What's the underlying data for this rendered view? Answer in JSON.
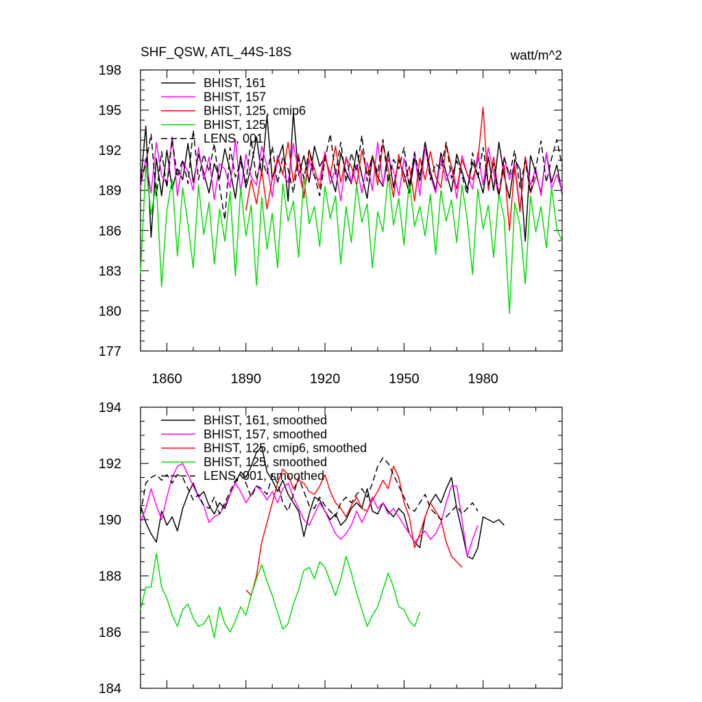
{
  "figure": {
    "title_left": "SHF_QSW, ATL_44S-18S",
    "title_right": "watt/m^2"
  },
  "chart_data": [
    {
      "type": "line",
      "panel": "top",
      "x": {
        "start": 1850,
        "end": 2010,
        "step": 2
      },
      "xlim": [
        1850,
        2010
      ],
      "xticks": [
        1860,
        1890,
        1920,
        1950,
        1980
      ],
      "xtick_labels_shown": true,
      "ylim": [
        177,
        198
      ],
      "yticks": [
        177,
        180,
        183,
        186,
        189,
        192,
        195,
        198
      ],
      "legend_position": "top-left",
      "series": [
        {
          "name": "BHIST, 161",
          "color": "#000000",
          "dash": "solid",
          "start_year": 1850,
          "values": [
            189.4,
            193.8,
            185.5,
            191.4,
            188.6,
            192.0,
            189.1,
            190.6,
            189.8,
            192.5,
            189.6,
            191.7,
            190.3,
            188.8,
            191.0,
            189.9,
            192.1,
            190.5,
            188.4,
            191.6,
            189.2,
            190.8,
            193.0,
            190.1,
            194.6,
            189.8,
            191.2,
            192.4,
            188.2,
            194.8,
            190.1,
            191.6,
            189.6,
            192.3,
            190.8,
            191.5,
            190.2,
            188.9,
            191.8,
            190.4,
            189.5,
            192.0,
            190.1,
            188.4,
            191.6,
            190.0,
            189.3,
            191.9,
            189.2,
            191.3,
            190.2,
            188.8,
            191.4,
            189.7,
            192.6,
            190.4,
            189.0,
            191.8,
            190.3,
            188.9,
            191.7,
            190.4,
            189.1,
            191.1,
            190.2,
            188.8,
            191.5,
            189.0,
            192.6,
            190.1,
            188.4,
            191.3,
            190.6,
            185.2,
            191.6,
            190.3,
            188.8,
            191.8,
            189.6,
            190.9,
            188.7
          ]
        },
        {
          "name": "BHIST, 157",
          "color": "#ff00ff",
          "dash": "solid",
          "start_year": 1850,
          "values": [
            189.2,
            191.4,
            188.8,
            192.6,
            190.1,
            189.5,
            193.0,
            188.6,
            191.2,
            190.4,
            189.0,
            192.2,
            189.8,
            191.5,
            188.3,
            191.0,
            190.6,
            189.2,
            192.8,
            188.9,
            191.7,
            190.0,
            189.4,
            192.3,
            190.8,
            188.5,
            191.6,
            190.2,
            189.6,
            192.5,
            190.3,
            188.7,
            191.3,
            190.0,
            189.8,
            191.9,
            189.5,
            190.6,
            188.2,
            191.5,
            189.6,
            190.9,
            188.8,
            191.1,
            189.0,
            192.6,
            189.4,
            191.3,
            190.5,
            188.6,
            191.4,
            189.3,
            191.9,
            188.6,
            192.3,
            190.1,
            188.8,
            191.4,
            189.7,
            190.8,
            188.4,
            191.6,
            190.2,
            189.1,
            191.8,
            189.4,
            192.2,
            190.3,
            188.5,
            191.5,
            189.8,
            191.0,
            187.6,
            191.5,
            189.4,
            190.6,
            188.6,
            191.8,
            189.1,
            190.2,
            188.9
          ]
        },
        {
          "name": "BHIST, 125, cmip6",
          "color": "#ff0000",
          "dash": "solid",
          "start_year": 1890,
          "values": [
            187.5,
            189.8,
            188.0,
            190.5,
            187.6,
            189.9,
            191.4,
            190.2,
            192.6,
            189.6,
            191.7,
            188.4,
            192.0,
            190.6,
            189.2,
            191.6,
            190.1,
            192.3,
            189.6,
            191.4,
            190.8,
            189.4,
            192.0,
            190.2,
            191.6,
            189.4,
            192.5,
            190.6,
            188.5,
            191.7,
            189.6,
            190.8,
            188.2,
            191.4,
            189.8,
            191.9,
            190.0,
            189.2,
            192.4,
            190.8,
            189.1,
            191.3,
            190.2,
            189.8,
            191.2,
            195.2,
            189.0,
            191.5,
            188.6,
            190.9,
            186.0,
            190.8,
            187.4,
            191.5,
            188.8,
            190.0
          ]
        },
        {
          "name": "BHIST, 125",
          "color": "#00dd00",
          "dash": "solid",
          "start_year": 1850,
          "values": [
            182.8,
            190.9,
            187.2,
            189.5,
            181.8,
            187.5,
            189.8,
            184.1,
            189.2,
            186.5,
            183.2,
            189.4,
            185.7,
            188.1,
            183.5,
            187.6,
            185.2,
            188.9,
            182.6,
            189.2,
            185.6,
            187.9,
            181.9,
            188.5,
            184.6,
            187.3,
            183.2,
            189.5,
            186.7,
            188.2,
            184.0,
            190.1,
            186.5,
            187.8,
            184.8,
            189.3,
            186.9,
            188.6,
            183.5,
            187.8,
            185.1,
            189.4,
            186.6,
            188.0,
            183.2,
            187.4,
            185.9,
            190.2,
            186.4,
            188.4,
            184.9,
            189.8,
            186.3,
            187.8,
            185.6,
            188.7,
            184.2,
            189.0,
            186.7,
            188.3,
            185.1,
            189.4,
            186.8,
            182.7,
            189.1,
            186.1,
            187.9,
            184.0,
            188.8,
            186.9,
            179.8,
            188.1,
            186.4,
            182.0,
            188.6,
            185.9,
            187.8,
            184.7,
            189.2,
            186.1,
            185.2
          ]
        },
        {
          "name": "LENS, 001",
          "color": "#000000",
          "dash": "dashed",
          "start_year": 1850,
          "values": [
            189.7,
            191.0,
            193.2,
            188.6,
            191.9,
            189.2,
            192.8,
            190.0,
            191.3,
            189.5,
            193.5,
            189.8,
            191.7,
            190.4,
            192.5,
            189.3,
            186.8,
            192.2,
            190.0,
            191.1,
            189.6,
            192.8,
            189.8,
            191.4,
            190.2,
            192.3,
            189.5,
            191.5,
            190.6,
            188.8,
            191.4,
            189.9,
            192.0,
            190.1,
            188.6,
            191.3,
            193.2,
            190.2,
            192.6,
            189.6,
            191.8,
            190.4,
            193.1,
            189.7,
            191.5,
            190.3,
            192.8,
            189.6,
            191.3,
            190.6,
            192.2,
            189.3,
            191.8,
            190.0,
            192.5,
            189.8,
            191.0,
            190.6,
            192.6,
            189.9,
            191.2,
            190.1,
            188.7,
            191.8,
            189.9,
            192.2,
            189.4,
            191.0,
            188.6,
            191.5,
            190.1,
            192.0,
            189.2,
            191.2,
            188.8,
            190.7,
            192.7,
            189.6,
            191.4,
            192.8,
            190.8
          ]
        }
      ]
    },
    {
      "type": "line",
      "panel": "bottom",
      "x": {
        "start": 1850,
        "end": 2010,
        "step": 2
      },
      "xlim": [
        1850,
        2010
      ],
      "xticks": [
        1860,
        1890,
        1920,
        1950,
        1980
      ],
      "xtick_labels_shown": false,
      "ylim": [
        184,
        194
      ],
      "yticks": [
        184,
        186,
        188,
        190,
        192,
        194
      ],
      "legend_position": "top-left",
      "series": [
        {
          "name": "BHIST, 161, smoothed",
          "color": "#000000",
          "dash": "solid",
          "start_year": 1850,
          "values": [
            190.5,
            189.9,
            189.5,
            189.2,
            190.3,
            189.8,
            190.1,
            189.6,
            190.4,
            190.9,
            191.3,
            190.8,
            191.0,
            190.5,
            190.2,
            190.6,
            190.4,
            190.9,
            191.3,
            191.7,
            191.5,
            191.9,
            192.4,
            192.6,
            191.7,
            191.4,
            191.0,
            191.4,
            190.9,
            190.6,
            190.3,
            189.4,
            190.2,
            190.8,
            190.7,
            190.3,
            190.0,
            190.2,
            189.8,
            190.0,
            190.4,
            190.6,
            190.4,
            191.1,
            190.3,
            190.2,
            190.6,
            190.3,
            190.1,
            190.4,
            190.2,
            189.5,
            189.2,
            189.0,
            190.1,
            190.6,
            190.9,
            190.6,
            191.1,
            191.5,
            190.4,
            189.6,
            188.7,
            188.6,
            189.0,
            190.1,
            190.0,
            189.9,
            190.0,
            189.8
          ]
        },
        {
          "name": "BHIST, 157, smoothed",
          "color": "#ff00ff",
          "dash": "solid",
          "start_year": 1850,
          "values": [
            189.9,
            190.4,
            191.1,
            190.5,
            190.0,
            190.8,
            191.5,
            191.9,
            192.0,
            191.6,
            191.2,
            190.8,
            190.5,
            189.9,
            190.1,
            190.2,
            190.5,
            190.9,
            191.3,
            191.0,
            190.6,
            190.9,
            191.2,
            191.0,
            190.7,
            191.0,
            190.6,
            191.1,
            191.3,
            190.8,
            190.4,
            190.0,
            189.8,
            190.2,
            190.6,
            190.3,
            189.9,
            189.5,
            189.3,
            189.5,
            189.8,
            190.3,
            189.9,
            190.3,
            190.8,
            190.4,
            190.6,
            190.2,
            190.4,
            190.1,
            189.8,
            189.5,
            189.2,
            189.4,
            189.6,
            189.3,
            189.5,
            189.9,
            190.6,
            191.2,
            191.2,
            190.0,
            188.7,
            189.3,
            189.8
          ]
        },
        {
          "name": "BHIST, 125, cmip6, smoothed",
          "color": "#ff0000",
          "dash": "solid",
          "start_year": 1890,
          "values": [
            187.5,
            187.3,
            188.0,
            189.2,
            189.9,
            190.6,
            191.3,
            191.8,
            191.6,
            191.1,
            191.4,
            191.3,
            191.0,
            190.9,
            191.2,
            191.6,
            191.0,
            190.6,
            190.4,
            190.1,
            190.5,
            190.8,
            190.4,
            190.3,
            190.7,
            191.0,
            191.4,
            191.1,
            191.9,
            191.5,
            190.6,
            190.1,
            189.0,
            189.5,
            190.1,
            190.6,
            190.3,
            190.0,
            189.2,
            188.7,
            188.5,
            188.3
          ]
        },
        {
          "name": "BHIST, 125, smoothed",
          "color": "#00dd00",
          "dash": "solid",
          "start_year": 1850,
          "values": [
            186.8,
            187.6,
            187.6,
            188.8,
            187.6,
            187.2,
            186.6,
            186.2,
            186.8,
            187.0,
            186.5,
            186.2,
            186.3,
            186.6,
            185.8,
            186.9,
            186.3,
            186.0,
            186.4,
            186.9,
            186.6,
            187.3,
            187.9,
            188.4,
            187.8,
            187.3,
            186.7,
            186.1,
            186.3,
            187.0,
            187.5,
            188.2,
            188.3,
            187.9,
            188.5,
            188.3,
            187.8,
            187.3,
            187.9,
            188.7,
            188.1,
            187.4,
            186.8,
            186.2,
            186.6,
            186.9,
            187.5,
            188.1,
            187.6,
            186.9,
            186.8,
            186.4,
            186.2,
            186.7
          ]
        },
        {
          "name": "LENS, 001, smoothed",
          "color": "#000000",
          "dash": "dashed",
          "start_year": 1850,
          "values": [
            190.2,
            191.3,
            191.5,
            191.6,
            191.4,
            191.6,
            191.3,
            191.6,
            191.5,
            191.1,
            190.7,
            190.9,
            190.5,
            190.4,
            190.8,
            190.2,
            190.6,
            191.0,
            191.4,
            191.6,
            191.3,
            190.8,
            191.2,
            191.1,
            190.9,
            191.6,
            191.3,
            190.6,
            190.3,
            190.9,
            191.5,
            191.0,
            190.5,
            190.4,
            190.8,
            190.5,
            190.3,
            190.1,
            190.6,
            190.8,
            190.6,
            190.9,
            191.1,
            190.8,
            191.3,
            191.9,
            192.2,
            192.0,
            191.6,
            191.2,
            190.8,
            190.4,
            190.3,
            190.6,
            190.9,
            190.4,
            190.2,
            190.0,
            190.1,
            190.3,
            190.5,
            190.2,
            190.4,
            190.6,
            190.3
          ]
        }
      ]
    }
  ]
}
